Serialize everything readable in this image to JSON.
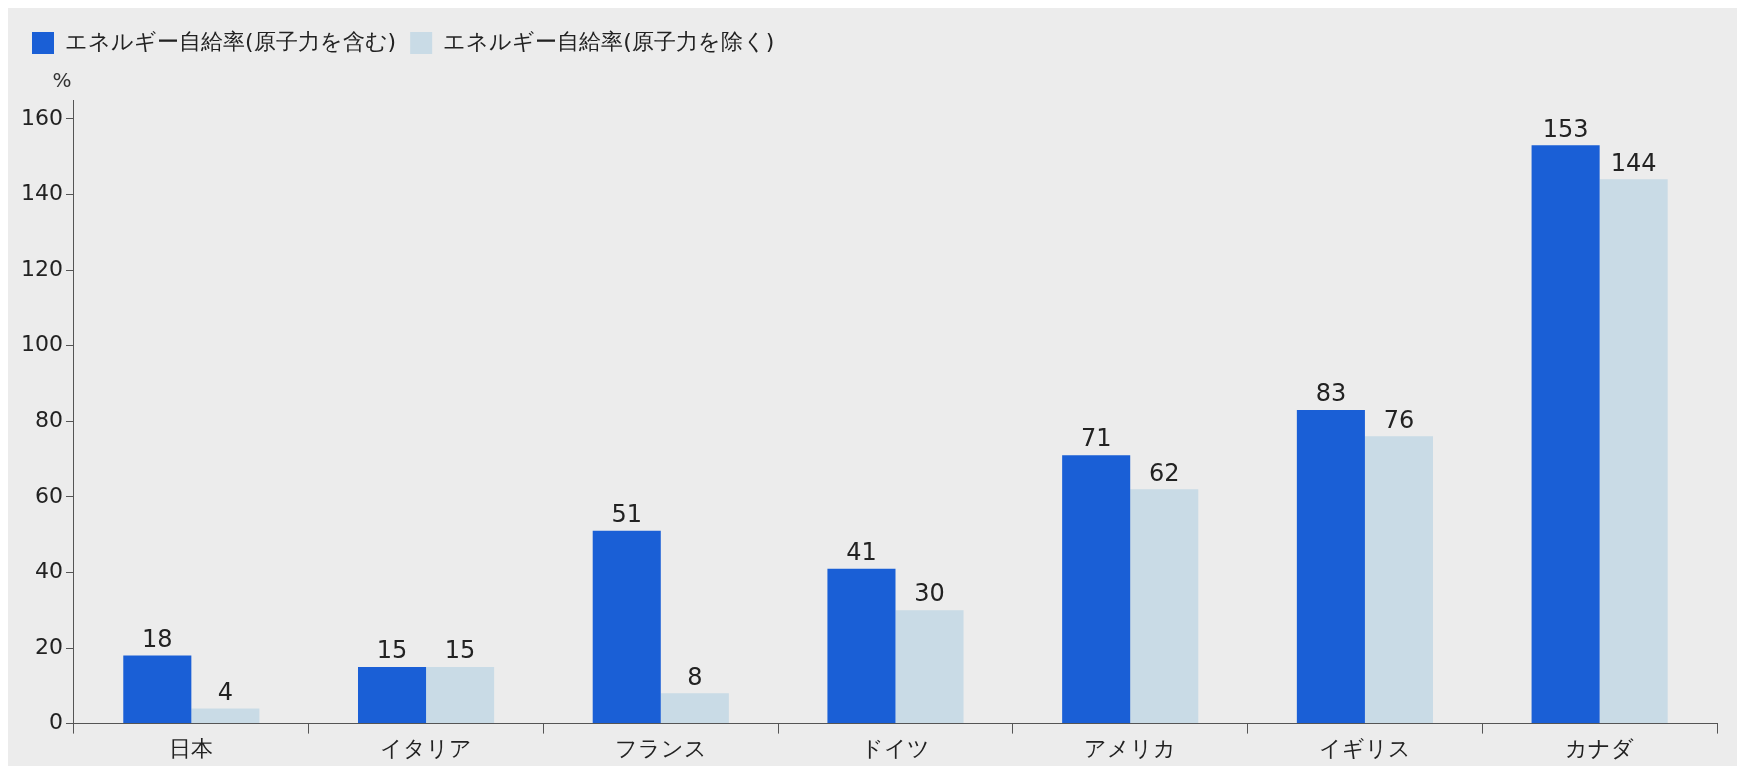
{
  "chart_data": {
    "type": "bar",
    "ylabel": "%",
    "categories": [
      "日本",
      "イタリア",
      "フランス",
      "ドイツ",
      "アメリカ",
      "イギリス",
      "カナダ"
    ],
    "series": [
      {
        "name": "エネルギー自給率(原子力を含む)",
        "color": "#1a5fd6",
        "values": [
          18,
          15,
          51,
          41,
          71,
          83,
          153
        ]
      },
      {
        "name": "エネルギー自給率(原子力を除く)",
        "color": "#c9dbe6",
        "values": [
          4,
          15,
          8,
          30,
          62,
          76,
          144
        ]
      }
    ],
    "ylim": [
      0,
      165
    ],
    "yticks": [
      0,
      20,
      40,
      60,
      80,
      100,
      120,
      140,
      160
    ],
    "grid": false,
    "legend": "top left",
    "data_labels": true
  }
}
